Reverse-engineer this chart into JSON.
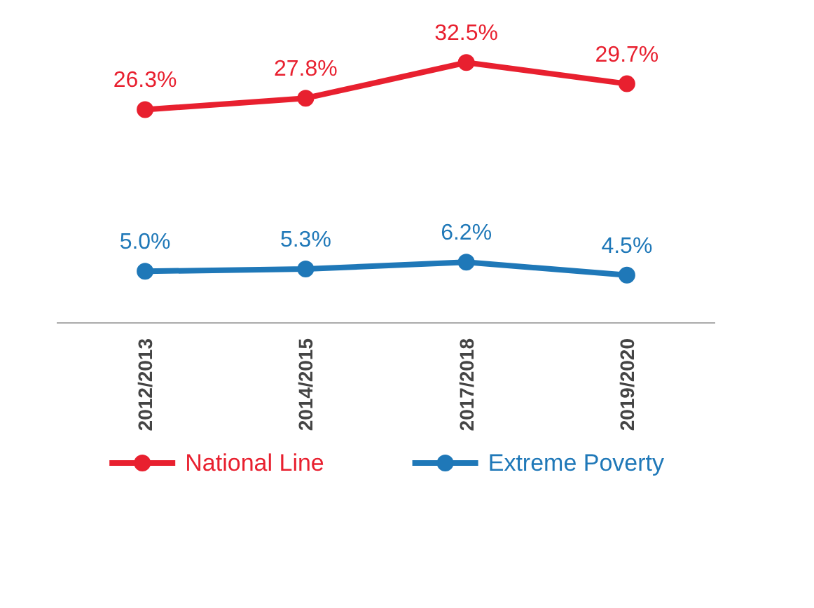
{
  "chart_data": {
    "type": "line",
    "categories": [
      "2012/2013",
      "2014/2015",
      "2017/2018",
      "2019/2020"
    ],
    "series": [
      {
        "name": "National Line",
        "color": "#e8202f",
        "values": [
          26.3,
          27.8,
          32.5,
          29.7
        ],
        "value_labels": [
          "26.3%",
          "27.8%",
          "32.5%",
          "29.7%"
        ]
      },
      {
        "name": "Extreme Poverty",
        "color": "#1f78b8",
        "values": [
          5.0,
          5.3,
          6.2,
          4.5
        ],
        "value_labels": [
          "5.0%",
          "5.3%",
          "6.2%",
          "4.5%"
        ]
      }
    ],
    "tick_labels": "x",
    "legend": "bottom",
    "marker": "circle",
    "line_style": "solid"
  }
}
